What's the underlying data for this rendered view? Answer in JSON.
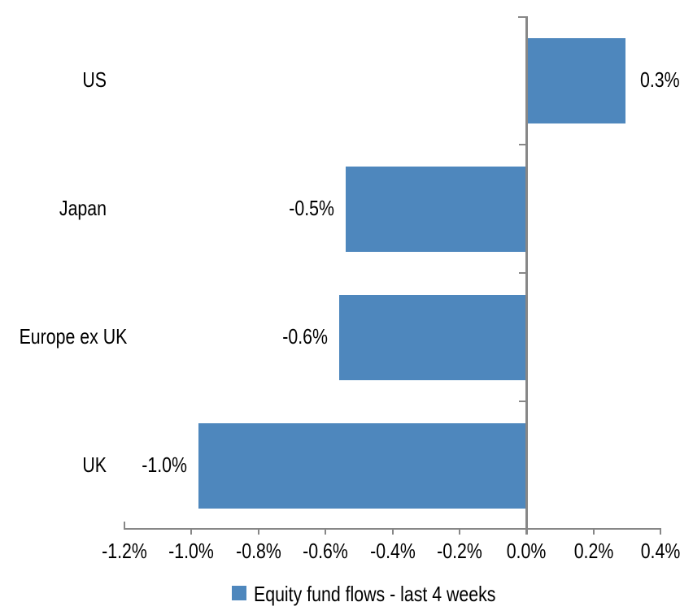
{
  "chart_data": {
    "type": "bar",
    "orientation": "horizontal",
    "title": "",
    "xlabel": "",
    "ylabel": "",
    "categories": [
      "US",
      "Japan",
      "Europe ex UK",
      "UK"
    ],
    "values": [
      0.3,
      -0.5,
      -0.6,
      -1.0
    ],
    "value_labels": [
      "0.3%",
      "-0.5%",
      "-0.6%",
      "-1.0%"
    ],
    "render_values": [
      0.295,
      -0.54,
      -0.56,
      -0.98
    ],
    "xlim": [
      -1.2,
      0.4
    ],
    "x_ticks": [
      -1.2,
      -1.0,
      -0.8,
      -0.6,
      -0.4,
      -0.2,
      0.0,
      0.2,
      0.4
    ],
    "x_tick_labels": [
      "-1.2%",
      "-1.0%",
      "-0.8%",
      "-0.6%",
      "-0.4%",
      "-0.2%",
      "0.0%",
      "0.2%",
      "0.4%"
    ],
    "grid": false,
    "legend_position": "bottom",
    "legend": [
      {
        "label": "Equity fund flows - last 4 weeks",
        "color": "#4e87bd"
      }
    ],
    "colors": {
      "bar": "#4e87bd",
      "axis": "#878787",
      "text": "#000000",
      "background": "#ffffff"
    }
  }
}
